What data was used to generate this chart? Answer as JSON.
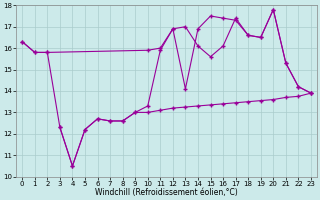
{
  "xlabel": "Windchill (Refroidissement éolien,°C)",
  "line_color": "#990099",
  "bg_color": "#cceaea",
  "grid_color": "#aacccc",
  "ylim": [
    10,
    18
  ],
  "yticks": [
    10,
    11,
    12,
    13,
    14,
    15,
    16,
    17,
    18
  ],
  "xlim": [
    -0.5,
    23.5
  ],
  "xticks": [
    0,
    1,
    2,
    3,
    4,
    5,
    6,
    7,
    8,
    9,
    10,
    11,
    12,
    13,
    14,
    15,
    16,
    17,
    18,
    19,
    20,
    21,
    22,
    23
  ],
  "upper_x": [
    0,
    1,
    2,
    10,
    11,
    12,
    13,
    14,
    15,
    16,
    17,
    18,
    19,
    20,
    21,
    22,
    23
  ],
  "upper_y": [
    16.3,
    15.8,
    15.8,
    15.9,
    16.0,
    16.9,
    17.0,
    16.1,
    15.6,
    16.1,
    17.4,
    16.6,
    16.5,
    17.8,
    15.3,
    14.2,
    13.9
  ],
  "zigzag_x": [
    0,
    1,
    2,
    3,
    4,
    5,
    6,
    7,
    8,
    9,
    10,
    11,
    12,
    13,
    14,
    15,
    16,
    17,
    18,
    19,
    20,
    21,
    22,
    23
  ],
  "zigzag_y": [
    16.3,
    15.8,
    15.8,
    12.3,
    10.5,
    12.2,
    12.7,
    12.6,
    12.6,
    13.0,
    13.3,
    15.9,
    16.9,
    14.1,
    16.9,
    17.5,
    17.4,
    17.3,
    16.6,
    16.5,
    17.8,
    15.3,
    14.2,
    13.9
  ],
  "lower_x": [
    3,
    4,
    5,
    6,
    7,
    8,
    9,
    10,
    11,
    12,
    13,
    14,
    15,
    16,
    17,
    18,
    19,
    20,
    21,
    22,
    23
  ],
  "lower_y": [
    12.3,
    10.5,
    12.2,
    12.7,
    12.6,
    12.6,
    13.0,
    13.0,
    13.1,
    13.2,
    13.25,
    13.3,
    13.35,
    13.4,
    13.45,
    13.5,
    13.55,
    13.6,
    13.7,
    13.75,
    13.9
  ],
  "marker": "+",
  "markersize": 3,
  "linewidth": 0.8,
  "tick_fontsize": 5.0,
  "xlabel_fontsize": 5.5
}
